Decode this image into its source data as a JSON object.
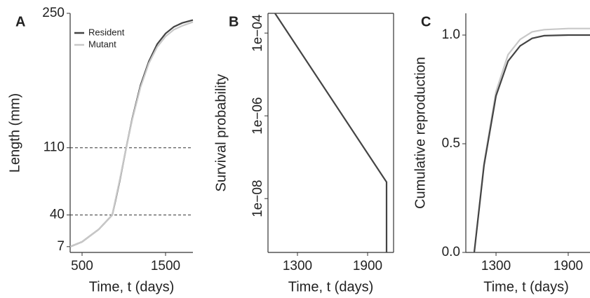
{
  "chart_data": [
    {
      "type": "line",
      "panel_label": "A",
      "ylabel": "Length (mm)",
      "xlabel": "Time, t (days)",
      "x": [
        357,
        500,
        700,
        861,
        900,
        950,
        1029,
        1100,
        1200,
        1300,
        1400,
        1500,
        1600,
        1700,
        1828
      ],
      "series": [
        {
          "name": "Resident",
          "color": "#444444",
          "values": [
            7,
            12,
            25,
            40,
            55,
            75,
            110,
            140,
            175,
            200,
            218,
            229,
            236,
            240,
            243
          ]
        },
        {
          "name": "Mutant",
          "color": "#c8c8c8",
          "values": [
            7,
            12,
            25,
            40,
            56,
            76,
            110,
            139,
            173,
            198,
            215,
            226,
            233,
            237,
            241
          ]
        }
      ],
      "xlim": [
        357,
        1828
      ],
      "xticks": [
        500,
        1500
      ],
      "ylim": [
        1,
        250
      ],
      "yticks": [
        7,
        40,
        110,
        250
      ],
      "hlines": [
        40,
        110
      ],
      "legend": "top-left"
    },
    {
      "type": "line",
      "panel_label": "B",
      "ylabel": "Survival probability",
      "xlabel": "Time, t (days)",
      "x": [
        1108,
        2062,
        2062
      ],
      "series": [
        {
          "color": "#444444",
          "values": [
            0.0003,
            2.5e-08,
            5e-10
          ]
        }
      ],
      "xlim": [
        1048,
        2122
      ],
      "xticks": [
        1300,
        1900
      ],
      "ylim": [
        5e-10,
        0.0003
      ],
      "log_y": true,
      "yticks": [
        {
          "value": 0.0001,
          "label": "1e−04"
        },
        {
          "value": 1e-06,
          "label": "1e−06"
        },
        {
          "value": 1e-08,
          "label": "1e−08"
        }
      ],
      "box": true
    },
    {
      "type": "line",
      "panel_label": "C",
      "ylabel": "Cumulative reproduction",
      "xlabel": "Time, t (days)",
      "x": [
        1119,
        1200,
        1300,
        1400,
        1500,
        1600,
        1700,
        1900,
        2081
      ],
      "series": [
        {
          "color": "#c8c8c8",
          "values": [
            0,
            0.41,
            0.74,
            0.91,
            0.98,
            1.015,
            1.025,
            1.03,
            1.03
          ]
        },
        {
          "color": "#444444",
          "values": [
            0,
            0.4,
            0.72,
            0.88,
            0.95,
            0.985,
            0.997,
            1.0,
            1.0
          ]
        }
      ],
      "xlim": [
        1049,
        2081
      ],
      "xticks": [
        1300,
        1900
      ],
      "ylim": [
        0,
        1.1
      ],
      "yticks": [
        {
          "value": 0,
          "label": "0.0"
        },
        0.5,
        {
          "value": 1,
          "label": "1.0"
        }
      ]
    }
  ]
}
